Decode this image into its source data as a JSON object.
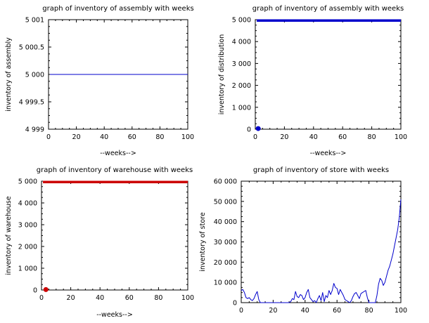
{
  "chart_data": [
    {
      "type": "line",
      "title": "graph of inventory of assembly with weeks",
      "xlabel": "--weeks-->",
      "ylabel": "inventory of assembly",
      "xlim": [
        0,
        100
      ],
      "ylim": [
        4999,
        5001
      ],
      "xticks": [
        0,
        20,
        40,
        60,
        80,
        100
      ],
      "xtick_labels": [
        "0",
        "20",
        "40",
        "60",
        "80",
        "100"
      ],
      "yticks": [
        4999,
        4999.5,
        5000,
        5000.5,
        5001
      ],
      "ytick_labels": [
        "4 999",
        "4 999.5",
        "5 000",
        "5 000.5",
        "5 001"
      ],
      "series": [
        {
          "color": "#0000cc",
          "style": "line",
          "x": [
            1,
            100
          ],
          "y": [
            5000,
            5000
          ]
        }
      ]
    },
    {
      "type": "line",
      "title": "graph of inventory of assembly with weeks",
      "xlabel": "--weeks-->",
      "ylabel": "inventory of distribution",
      "xlim": [
        0,
        100
      ],
      "ylim": [
        0,
        5000
      ],
      "xticks": [
        0,
        20,
        40,
        60,
        80,
        100
      ],
      "xtick_labels": [
        "0",
        "20",
        "40",
        "60",
        "80",
        "100"
      ],
      "yticks": [
        0,
        1000,
        2000,
        3000,
        4000,
        5000
      ],
      "ytick_labels": [
        "0",
        "1 000",
        "2 000",
        "3 000",
        "4 000",
        "5 000"
      ],
      "series": [
        {
          "color": "#0000cc",
          "style": "band",
          "x": [
            1,
            100
          ],
          "y": [
            4960,
            4960
          ]
        },
        {
          "color": "#0000cc",
          "style": "marker",
          "x": [
            2
          ],
          "y": [
            30
          ]
        }
      ]
    },
    {
      "type": "line",
      "title": "graph of inventory of warehouse with weeks",
      "xlabel": "--weeks-->",
      "ylabel": "inventory of warehouse",
      "xlim": [
        0,
        100
      ],
      "ylim": [
        0,
        5000
      ],
      "xticks": [
        0,
        20,
        40,
        60,
        80,
        100
      ],
      "xtick_labels": [
        "0",
        "20",
        "40",
        "60",
        "80",
        "100"
      ],
      "yticks": [
        0,
        1000,
        2000,
        3000,
        4000,
        5000
      ],
      "ytick_labels": [
        "0",
        "1 000",
        "2 000",
        "3 000",
        "4 000",
        "5 000"
      ],
      "series": [
        {
          "color": "#cc0000",
          "style": "band",
          "x": [
            1,
            100
          ],
          "y": [
            4960,
            4960
          ]
        },
        {
          "color": "#cc0000",
          "style": "marker",
          "x": [
            3
          ],
          "y": [
            20
          ]
        }
      ]
    },
    {
      "type": "line",
      "title": "graph of inventory of store with weeks",
      "xlabel": "",
      "ylabel": "inventory of store",
      "xlim": [
        0,
        100
      ],
      "ylim": [
        0,
        60000
      ],
      "xticks": [
        0,
        20,
        40,
        60,
        80,
        100
      ],
      "xtick_labels": [
        "0",
        "20",
        "40",
        "60",
        "80",
        "100"
      ],
      "yticks": [
        0,
        10000,
        20000,
        30000,
        40000,
        50000,
        60000
      ],
      "ytick_labels": [
        "0",
        "10 000",
        "20 000",
        "30 000",
        "40 000",
        "50 000",
        "60 000"
      ],
      "series": [
        {
          "color": "#0000cc",
          "style": "line",
          "x": [
            0,
            1,
            2,
            3,
            4,
            5,
            6,
            7,
            8,
            9,
            10,
            11,
            12,
            13,
            14,
            15,
            16,
            17,
            18,
            19,
            20,
            21,
            22,
            23,
            24,
            25,
            26,
            27,
            28,
            29,
            30,
            31,
            32,
            33,
            34,
            35,
            36,
            37,
            38,
            39,
            40,
            41,
            42,
            43,
            44,
            45,
            46,
            47,
            48,
            49,
            50,
            51,
            52,
            53,
            54,
            55,
            56,
            57,
            58,
            59,
            60,
            61,
            62,
            63,
            64,
            65,
            66,
            67,
            68,
            69,
            70,
            71,
            72,
            73,
            74,
            75,
            76,
            77,
            78,
            79,
            80,
            81,
            82,
            83,
            84,
            85,
            86,
            87,
            88,
            89,
            90,
            91,
            92,
            93,
            94,
            95,
            96,
            97,
            98,
            99,
            100
          ],
          "y": [
            6000,
            6500,
            5000,
            2500,
            2000,
            2500,
            1500,
            1000,
            2000,
            4000,
            5500,
            1500,
            0,
            0,
            0,
            0,
            0,
            0,
            0,
            0,
            0,
            0,
            0,
            0,
            0,
            0,
            0,
            0,
            0,
            0,
            0,
            500,
            2000,
            1500,
            5500,
            3000,
            2500,
            4000,
            3500,
            1500,
            2500,
            5000,
            6500,
            2500,
            1500,
            500,
            1000,
            0,
            2000,
            3500,
            1000,
            5000,
            500,
            3500,
            2500,
            6000,
            4000,
            6000,
            9500,
            7500,
            7000,
            4000,
            6500,
            5000,
            3500,
            1500,
            1000,
            500,
            0,
            1000,
            3000,
            4500,
            5000,
            3500,
            2000,
            4500,
            5000,
            5500,
            6000,
            2500,
            0,
            0,
            0,
            0,
            0,
            3500,
            9000,
            12000,
            11000,
            8500,
            10000,
            13000,
            16000,
            18000,
            21000,
            24000,
            28000,
            32000,
            36000,
            42000,
            51000
          ]
        }
      ]
    }
  ]
}
